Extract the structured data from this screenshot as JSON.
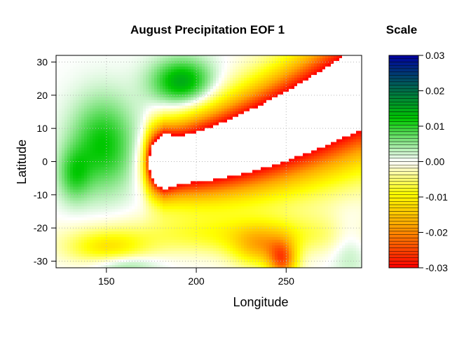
{
  "chart_data": [
    {
      "type": "heatmap",
      "title": "August Precipitation EOF 1",
      "xlabel": "Longitude",
      "ylabel": "Latitude",
      "xlim": [
        122,
        292
      ],
      "ylim": [
        -32,
        32
      ],
      "x_ticks": [
        "150",
        "200",
        "250"
      ],
      "x_tick_values": [
        150,
        200,
        250
      ],
      "y_ticks": [
        "30",
        "20",
        "10",
        "0",
        "-10",
        "-20",
        "-30"
      ],
      "y_tick_values": [
        30,
        20,
        10,
        0,
        -10,
        -20,
        -30
      ],
      "grid": "dotted",
      "value_range": [
        -0.03,
        0.03
      ],
      "features": [
        {
          "name": "strong negative tongue (white, below scale)",
          "lon": [
            182,
            282
          ],
          "lat": [
            -7,
            22
          ],
          "value": -0.035
        },
        {
          "name": "negative ridge (red/orange)",
          "lon": [
            172,
            292
          ],
          "lat": [
            -10,
            25
          ],
          "value": -0.025
        },
        {
          "name": "negative band south",
          "lon": [
            125,
            290
          ],
          "lat": [
            -30,
            -18
          ],
          "value": -0.008
        },
        {
          "name": "positive west (green)",
          "lon": [
            125,
            200
          ],
          "lat": [
            -10,
            30
          ],
          "value": 0.012
        },
        {
          "name": "positive north (green)",
          "lon": [
            170,
            215
          ],
          "lat": [
            15,
            32
          ],
          "value": 0.014
        }
      ]
    },
    {
      "type": "colorbar",
      "title": "Scale",
      "ticks": [
        "0.03",
        "0.02",
        "0.01",
        "0.00",
        "-0.01",
        "-0.02",
        "-0.03"
      ],
      "tick_values": [
        0.03,
        0.02,
        0.01,
        0.0,
        -0.01,
        -0.02,
        -0.03
      ],
      "range": [
        -0.03,
        0.03
      ],
      "n_levels": 64,
      "colors": [
        "#ff0000",
        "#ffa500",
        "#ffff00",
        "#ffffff",
        "#00c800",
        "#0000a0"
      ]
    }
  ]
}
